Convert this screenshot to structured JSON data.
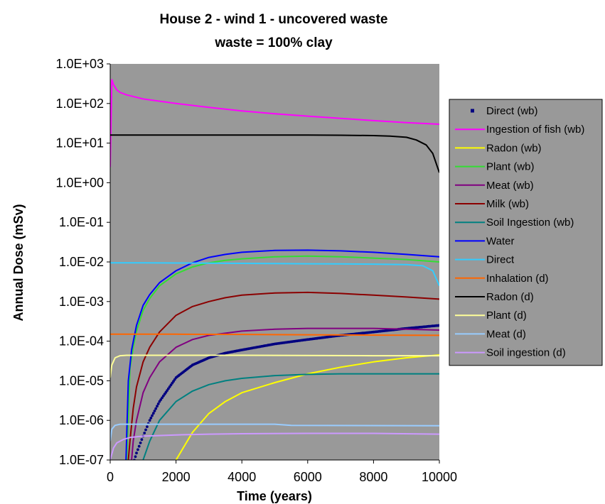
{
  "chart_data": {
    "type": "line",
    "title": "House 2 - wind 1 - uncovered waste",
    "subtitle": "waste = 100% clay",
    "xlabel": "Time (years)",
    "ylabel": "Annual Dose (mSv)",
    "xlim": [
      0,
      10000
    ],
    "ylim": [
      1e-07,
      1000
    ],
    "yscale": "log",
    "xticks": [
      "0",
      "2000",
      "4000",
      "6000",
      "8000",
      "10000"
    ],
    "yticks": [
      "1.0E-07",
      "1.0E-06",
      "1.0E-05",
      "1.0E-04",
      "1.0E-03",
      "1.0E-02",
      "1.0E-01",
      "1.0E+00",
      "1.0E+01",
      "1.0E+02",
      "1.0E+03"
    ],
    "plot_background": "#999999",
    "grid": false,
    "legend_position": "right",
    "series": [
      {
        "name": "Direct (wb)",
        "color": "#000080",
        "marker": "dot",
        "x": [
          700,
          800,
          1000,
          1200,
          1500,
          2000,
          2500,
          3000,
          3500,
          4000,
          5000,
          6000,
          7000,
          8000,
          9000,
          10000
        ],
        "y": [
          8e-08,
          1.5e-07,
          4e-07,
          1e-06,
          3e-06,
          1.2e-05,
          2.5e-05,
          3.8e-05,
          5e-05,
          6e-05,
          8.5e-05,
          0.00011,
          0.00014,
          0.00017,
          0.00021,
          0.00025
        ]
      },
      {
        "name": "Ingestion of fish (wb)",
        "color": "#ff00ff",
        "x": [
          0,
          50,
          100,
          200,
          300,
          500,
          1000,
          2000,
          3000,
          4000,
          5000,
          6000,
          7000,
          8000,
          9000,
          10000
        ],
        "y": [
          2.5,
          400,
          300,
          220,
          190,
          165,
          130,
          100,
          80,
          65,
          55,
          48,
          42,
          37,
          33,
          30
        ]
      },
      {
        "name": "Radon (wb)",
        "color": "#ffff00",
        "x": [
          2000,
          2500,
          3000,
          3500,
          4000,
          5000,
          6000,
          7000,
          8000,
          9000,
          10000
        ],
        "y": [
          1e-07,
          5e-07,
          1.5e-06,
          3e-06,
          5e-06,
          9e-06,
          1.5e-05,
          2.2e-05,
          3e-05,
          3.8e-05,
          4.5e-05
        ]
      },
      {
        "name": "Plant (wb)",
        "color": "#33dd33",
        "x": [
          500,
          600,
          700,
          800,
          1000,
          1200,
          1500,
          2000,
          2500,
          3000,
          3500,
          4000,
          5000,
          6000,
          7000,
          8000,
          9000,
          10000
        ],
        "y": [
          1e-07,
          2e-05,
          7e-05,
          0.00018,
          0.0006,
          0.0012,
          0.0025,
          0.005,
          0.0075,
          0.0095,
          0.011,
          0.012,
          0.0135,
          0.014,
          0.0135,
          0.0125,
          0.0115,
          0.01
        ]
      },
      {
        "name": "Meat (wb)",
        "color": "#800080",
        "x": [
          650,
          700,
          800,
          1000,
          1200,
          1500,
          2000,
          2500,
          3000,
          4000,
          5000,
          6000,
          7000,
          8000,
          9000,
          10000
        ],
        "y": [
          1e-07,
          3e-07,
          1e-06,
          5e-06,
          1.2e-05,
          3e-05,
          7e-05,
          0.00011,
          0.00014,
          0.00018,
          0.0002,
          0.00021,
          0.00021,
          0.00021,
          0.0002,
          0.00019
        ]
      },
      {
        "name": "Milk (wb)",
        "color": "#8b0000",
        "x": [
          550,
          600,
          700,
          800,
          1000,
          1200,
          1500,
          2000,
          2500,
          3000,
          3500,
          4000,
          5000,
          6000,
          7000,
          8000,
          9000,
          10000
        ],
        "y": [
          1e-07,
          3e-07,
          2e-06,
          7e-06,
          3e-05,
          7e-05,
          0.00017,
          0.00045,
          0.00075,
          0.001,
          0.00125,
          0.00145,
          0.00165,
          0.0017,
          0.0016,
          0.00145,
          0.0013,
          0.00115
        ]
      },
      {
        "name": "Soil Ingestion (wb)",
        "color": "#008080",
        "x": [
          1000,
          1200,
          1500,
          2000,
          2500,
          3000,
          3500,
          4000,
          5000,
          6000,
          7000,
          8000,
          9000,
          10000
        ],
        "y": [
          1e-07,
          3e-07,
          1e-06,
          3e-06,
          5.5e-06,
          8e-06,
          1e-05,
          1.15e-05,
          1.35e-05,
          1.45e-05,
          1.5e-05,
          1.5e-05,
          1.5e-05,
          1.5e-05
        ]
      },
      {
        "name": "Water",
        "color": "#0000ff",
        "x": [
          480,
          550,
          650,
          800,
          1000,
          1200,
          1500,
          2000,
          2500,
          3000,
          3500,
          4000,
          5000,
          6000,
          7000,
          8000,
          9000,
          10000
        ],
        "y": [
          1e-07,
          1e-05,
          6e-05,
          0.00025,
          0.0008,
          0.0015,
          0.003,
          0.006,
          0.0095,
          0.013,
          0.0155,
          0.0175,
          0.0195,
          0.0198,
          0.019,
          0.0175,
          0.0155,
          0.0135
        ]
      },
      {
        "name": "Direct",
        "color": "#33ccff",
        "x": [
          0,
          1000,
          2000,
          3000,
          4000,
          5000,
          6000,
          7000,
          8000,
          9000,
          9500,
          9800,
          10000
        ],
        "y": [
          0.0095,
          0.0095,
          0.0094,
          0.0093,
          0.0092,
          0.0091,
          0.009,
          0.0089,
          0.0088,
          0.0086,
          0.008,
          0.006,
          0.0025
        ]
      },
      {
        "name": "Inhalation (d)",
        "color": "#ff6600",
        "x": [
          0,
          2000,
          4000,
          6000,
          8000,
          10000
        ],
        "y": [
          0.00015,
          0.00015,
          0.000148,
          0.000145,
          0.000142,
          0.00014
        ]
      },
      {
        "name": "Radon (d)",
        "color": "#000000",
        "x": [
          0,
          1000,
          2000,
          4000,
          6000,
          7000,
          8000,
          8500,
          9000,
          9300,
          9600,
          9800,
          10000
        ],
        "y": [
          16,
          16,
          16,
          16,
          16,
          15.8,
          15.5,
          15,
          14,
          12,
          9,
          5.5,
          1.8
        ]
      },
      {
        "name": "Plant (d)",
        "color": "#ffff99",
        "x": [
          0,
          50,
          150,
          300,
          500,
          1000,
          4000,
          8000,
          10000
        ],
        "y": [
          1.2e-05,
          2.5e-05,
          3.8e-05,
          4.3e-05,
          4.4e-05,
          4.4e-05,
          4.4e-05,
          4.3e-05,
          4.3e-05
        ]
      },
      {
        "name": "Meat (d)",
        "color": "#99ccff",
        "x": [
          0,
          50,
          150,
          300,
          500,
          1000,
          5000,
          5500,
          10000
        ],
        "y": [
          3e-07,
          6e-07,
          7.5e-07,
          8e-07,
          8e-07,
          8e-07,
          8e-07,
          7.5e-07,
          7.3e-07
        ]
      },
      {
        "name": "Soil ingestion (d)",
        "color": "#cc99ff",
        "x": [
          0,
          100,
          200,
          400,
          600,
          1000,
          2000,
          3000,
          4000,
          6000,
          8000,
          10000
        ],
        "y": [
          1e-07,
          2e-07,
          2.7e-07,
          3.3e-07,
          3.7e-07,
          4e-07,
          4.3e-07,
          4.5e-07,
          4.6e-07,
          4.7e-07,
          4.7e-07,
          4.5e-07
        ]
      }
    ]
  }
}
